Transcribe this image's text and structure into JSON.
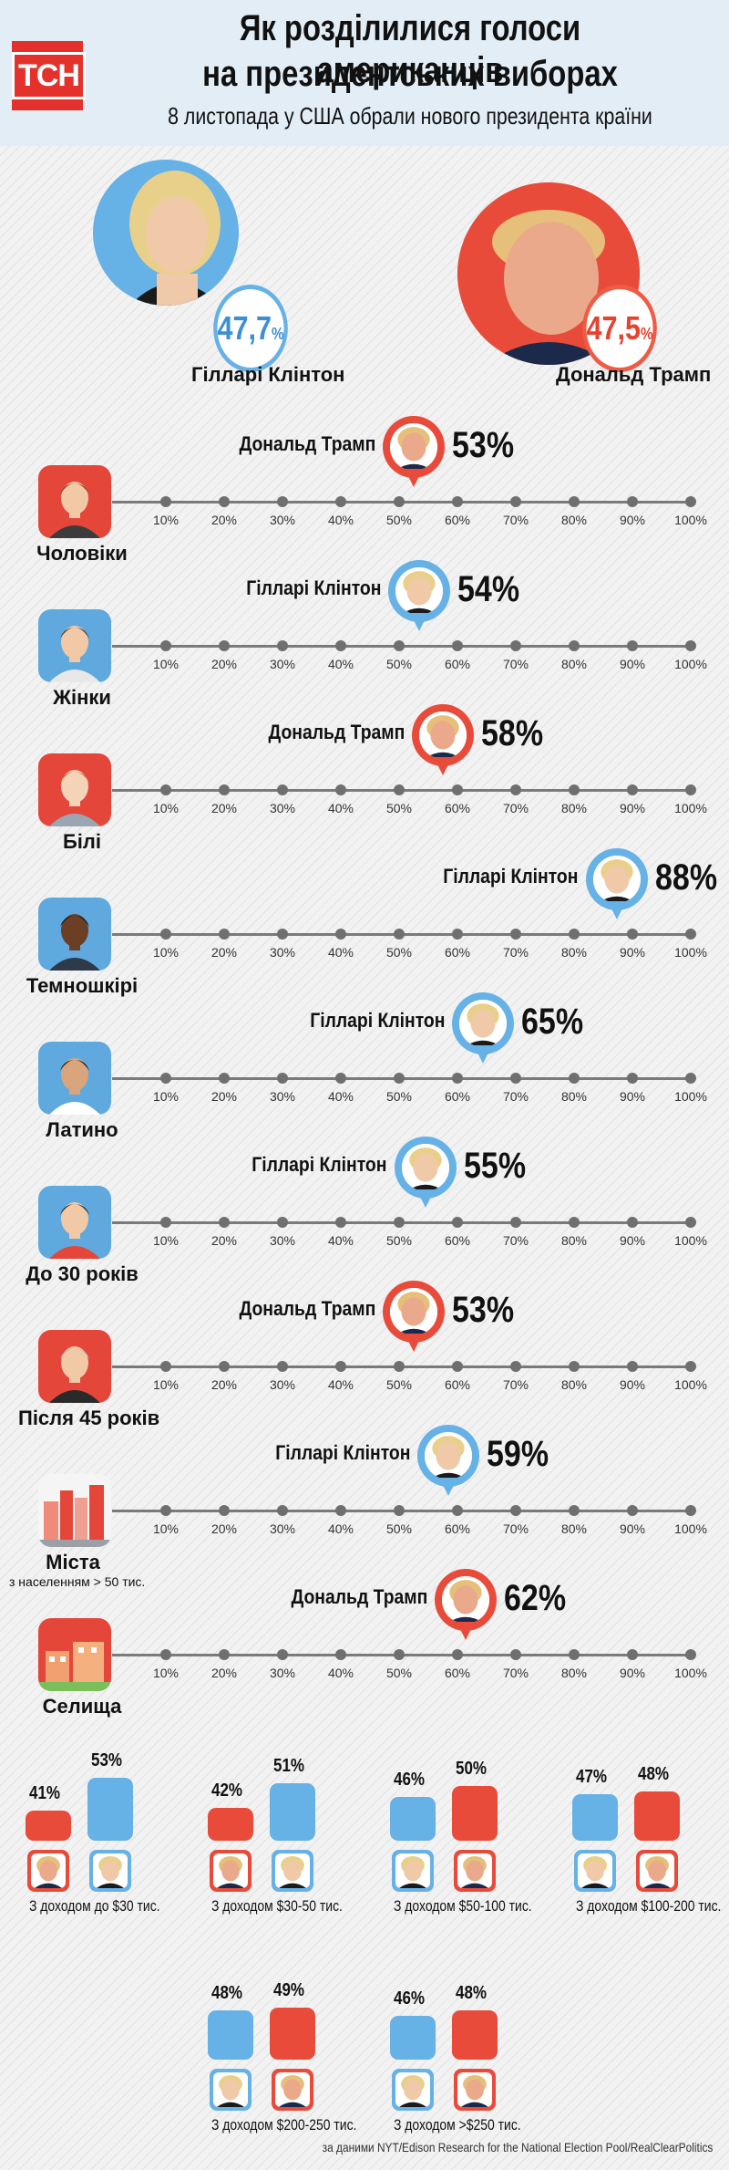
{
  "header": {
    "logo": "ТСН",
    "title_line1": "Як розділилися голоси американців",
    "title_line2": "на президентських виборах",
    "subtitle": "8 листопада у США обрали нового президента країни"
  },
  "colors": {
    "clinton": "#66b1e6",
    "trump": "#e94b3b"
  },
  "candidates": [
    {
      "name": "Гілларі Клінтон",
      "percent": "47,7",
      "unit": "%",
      "color": "blue"
    },
    {
      "name": "Дональд  Трамп",
      "percent": "47,5",
      "unit": "%",
      "color": "red"
    }
  ],
  "axis_ticks": [
    "10%",
    "20%",
    "30%",
    "40%",
    "50%",
    "60%",
    "70%",
    "80%",
    "90%",
    "100%"
  ],
  "groups": [
    {
      "label": "Чоловіки",
      "label2": "",
      "winner": "Дональд Трамп",
      "value": 53,
      "pct": "53%",
      "color": "red",
      "icon": "man-icon"
    },
    {
      "label": "Жінки",
      "label2": "",
      "winner": "Гілларі Клінтон",
      "value": 54,
      "pct": "54%",
      "color": "blue",
      "icon": "woman-icon"
    },
    {
      "label": "Білі",
      "label2": "",
      "winner": "Дональд Трамп",
      "value": 58,
      "pct": "58%",
      "color": "red",
      "icon": "white-man-icon"
    },
    {
      "label": "Темношкірі",
      "label2": "",
      "winner": "Гілларі Клінтон",
      "value": 88,
      "pct": "88%",
      "color": "blue",
      "icon": "black-man-icon"
    },
    {
      "label": "Латино",
      "label2": "",
      "winner": "Гілларі Клінтон",
      "value": 65,
      "pct": "65%",
      "color": "blue",
      "icon": "latino-man-icon"
    },
    {
      "label": "До 30 років",
      "label2": "",
      "winner": "Гілларі Клінтон",
      "value": 55,
      "pct": "55%",
      "color": "blue",
      "icon": "young-man-icon"
    },
    {
      "label": "Після 45 років",
      "label2": "",
      "winner": "Дональд Трамп",
      "value": 53,
      "pct": "53%",
      "color": "red",
      "icon": "older-man-icon"
    },
    {
      "label": "Міста",
      "label2": "з населенням > 50 тис.",
      "winner": "Гілларі Клінтон",
      "value": 59,
      "pct": "59%",
      "color": "blue",
      "icon": "city-icon"
    },
    {
      "label": "Селища",
      "label2": "",
      "winner": "Дональд Трамп",
      "value": 62,
      "pct": "62%",
      "color": "red",
      "icon": "village-icon"
    }
  ],
  "income": [
    {
      "caption": "З доходом до $30 тис.",
      "left": {
        "pct": "41%",
        "value": 41,
        "who": "trump"
      },
      "right": {
        "pct": "53%",
        "value": 53,
        "who": "clinton"
      }
    },
    {
      "caption": "З доходом $30-50 тис.",
      "left": {
        "pct": "42%",
        "value": 42,
        "who": "trump"
      },
      "right": {
        "pct": "51%",
        "value": 51,
        "who": "clinton"
      }
    },
    {
      "caption": "З доходом $50-100 тис.",
      "left": {
        "pct": "46%",
        "value": 46,
        "who": "clinton"
      },
      "right": {
        "pct": "50%",
        "value": 50,
        "who": "trump"
      }
    },
    {
      "caption": "З доходом $100-200 тис.",
      "left": {
        "pct": "47%",
        "value": 47,
        "who": "clinton"
      },
      "right": {
        "pct": "48%",
        "value": 48,
        "who": "trump"
      }
    },
    {
      "caption": "З доходом $200-250 тис.",
      "left": {
        "pct": "48%",
        "value": 48,
        "who": "clinton"
      },
      "right": {
        "pct": "49%",
        "value": 49,
        "who": "trump"
      }
    },
    {
      "caption": "З доходом >$250 тис.",
      "left": {
        "pct": "46%",
        "value": 46,
        "who": "clinton"
      },
      "right": {
        "pct": "48%",
        "value": 48,
        "who": "trump"
      }
    }
  ],
  "footer": "за даними NYT/Edison Research for the National Election Pool/RealClearPolitics"
}
